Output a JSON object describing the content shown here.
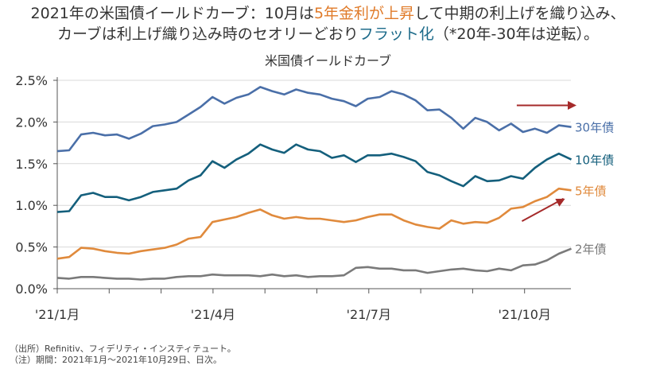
{
  "headline": {
    "line1_a": "2021年の米国債イールドカーブ：10月は",
    "line1_b": "5年金利が上昇",
    "line1_c": "して中期の利上げを織り込み、",
    "line2_a": "カーブは利上げ織り込み時のセオリーどおり",
    "line2_b": "フラット化",
    "line2_c": "（*20年-30年は逆転）。"
  },
  "footnotes": {
    "source": "（出所）Refinitiv、フィデリティ・インスティテュート。",
    "note": "（注）期間：2021年1月～2021年10月29日、日次。"
  },
  "colors": {
    "y30": "#4a6fa8",
    "y10": "#145f7c",
    "y5": "#e08a3c",
    "y2": "#7a7a7a",
    "arrow": "#a52a2a",
    "grid": "#d9d9d9",
    "axis": "#555555",
    "orange_text": "#e07b2a",
    "teal_text": "#1d6b8a"
  },
  "chart_data": {
    "type": "line",
    "title": "米国債イールドカーブ",
    "xlabel": "",
    "ylabel": "",
    "ylim": [
      0,
      2.5
    ],
    "yticks": [
      "0.0%",
      "0.5%",
      "1.0%",
      "1.5%",
      "2.0%",
      "2.5%"
    ],
    "ytick_values": [
      0,
      0.5,
      1.0,
      1.5,
      2.0,
      2.5
    ],
    "xlim": [
      0,
      10
    ],
    "xticks_labeled": [
      {
        "label": "'21/1月",
        "month": 0
      },
      {
        "label": "'21/4月",
        "month": 3
      },
      {
        "label": "'21/7月",
        "month": 6
      },
      {
        "label": "'21/10月",
        "month": 9
      }
    ],
    "xtick_months": [
      0,
      1,
      2,
      3,
      4,
      5,
      6,
      7,
      8,
      9,
      10
    ],
    "grid": true,
    "x_months": [
      0,
      0.23,
      0.46,
      0.69,
      0.92,
      1.15,
      1.38,
      1.61,
      1.84,
      2.07,
      2.3,
      2.53,
      2.76,
      2.99,
      3.22,
      3.45,
      3.68,
      3.91,
      4.14,
      4.37,
      4.6,
      4.83,
      5.06,
      5.29,
      5.52,
      5.75,
      5.98,
      6.21,
      6.44,
      6.67,
      6.9,
      7.13,
      7.36,
      7.59,
      7.82,
      8.05,
      8.28,
      8.51,
      8.74,
      8.97,
      9.2,
      9.43,
      9.66,
      9.9
    ],
    "series": [
      {
        "name": "30年債",
        "label": "30年債",
        "values": [
          1.65,
          1.66,
          1.85,
          1.87,
          1.84,
          1.85,
          1.8,
          1.86,
          1.95,
          1.97,
          2.0,
          2.09,
          2.18,
          2.3,
          2.22,
          2.29,
          2.33,
          2.42,
          2.37,
          2.33,
          2.39,
          2.35,
          2.33,
          2.28,
          2.25,
          2.19,
          2.28,
          2.3,
          2.37,
          2.33,
          2.26,
          2.14,
          2.15,
          2.05,
          1.92,
          2.05,
          2.0,
          1.9,
          1.98,
          1.88,
          1.92,
          1.87,
          1.96,
          1.94
        ]
      },
      {
        "name": "10年債",
        "label": "10年債",
        "values": [
          0.92,
          0.93,
          1.12,
          1.15,
          1.1,
          1.1,
          1.06,
          1.1,
          1.16,
          1.18,
          1.2,
          1.3,
          1.36,
          1.53,
          1.45,
          1.55,
          1.62,
          1.73,
          1.67,
          1.63,
          1.73,
          1.67,
          1.65,
          1.57,
          1.6,
          1.52,
          1.6,
          1.6,
          1.62,
          1.58,
          1.53,
          1.4,
          1.36,
          1.29,
          1.23,
          1.35,
          1.29,
          1.3,
          1.35,
          1.32,
          1.45,
          1.55,
          1.62,
          1.55
        ]
      },
      {
        "name": "5年債",
        "label": "5年債",
        "values": [
          0.36,
          0.38,
          0.49,
          0.48,
          0.45,
          0.43,
          0.42,
          0.45,
          0.47,
          0.49,
          0.53,
          0.6,
          0.62,
          0.8,
          0.83,
          0.86,
          0.91,
          0.95,
          0.88,
          0.84,
          0.86,
          0.84,
          0.84,
          0.82,
          0.8,
          0.82,
          0.86,
          0.89,
          0.89,
          0.82,
          0.77,
          0.74,
          0.72,
          0.82,
          0.78,
          0.8,
          0.79,
          0.85,
          0.96,
          0.98,
          1.05,
          1.1,
          1.2,
          1.18
        ]
      },
      {
        "name": "2年債",
        "label": "2年債",
        "values": [
          0.13,
          0.12,
          0.14,
          0.14,
          0.13,
          0.12,
          0.12,
          0.11,
          0.12,
          0.12,
          0.14,
          0.15,
          0.15,
          0.17,
          0.16,
          0.16,
          0.16,
          0.15,
          0.17,
          0.15,
          0.16,
          0.14,
          0.15,
          0.15,
          0.16,
          0.25,
          0.26,
          0.24,
          0.24,
          0.22,
          0.22,
          0.19,
          0.21,
          0.23,
          0.24,
          0.22,
          0.21,
          0.24,
          0.22,
          0.28,
          0.29,
          0.34,
          0.42,
          0.48
        ]
      }
    ],
    "annotations": [
      {
        "type": "arrow",
        "desc": "horizontal arrow above 30年債",
        "from_month": 8.85,
        "to_month": 10.0,
        "from_value": 2.2,
        "to_value": 2.2
      },
      {
        "type": "arrow",
        "desc": "up arrow along 5年債",
        "from_month": 8.95,
        "to_month": 9.78,
        "from_value": 0.81,
        "to_value": 1.08
      }
    ]
  }
}
